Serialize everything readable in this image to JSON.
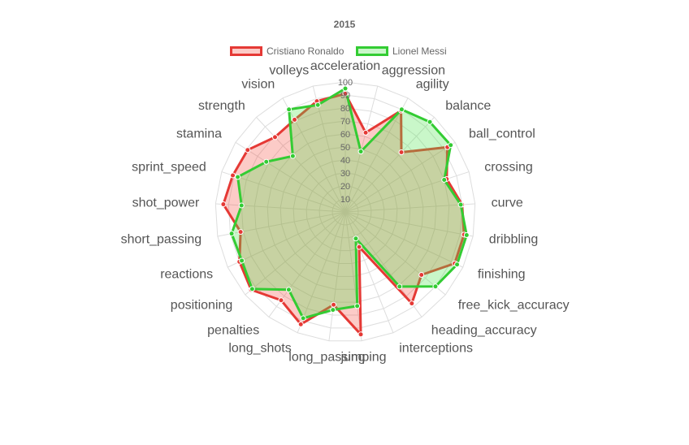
{
  "chart_data": {
    "type": "radar",
    "title": "2015",
    "axes": [
      "acceleration",
      "aggression",
      "agility",
      "balance",
      "ball_control",
      "crossing",
      "curve",
      "dribbling",
      "finishing",
      "free_kick_accuracy",
      "heading_accuracy",
      "interceptions",
      "jumping",
      "long_passing",
      "long_shots",
      "penalties",
      "positioning",
      "reactions",
      "short_passing",
      "shot_power",
      "sprint_speed",
      "stamina",
      "strength",
      "vision",
      "volleys"
    ],
    "r_ticks": [
      10,
      20,
      30,
      40,
      50,
      60,
      70,
      80,
      90,
      100
    ],
    "r_range": [
      0,
      100
    ],
    "grid": true,
    "legend_position": "top",
    "series": [
      {
        "name": "Cristiano Ronaldo",
        "color": "#e53935",
        "fill": "rgba(244,67,54,0.28)",
        "values": [
          91,
          63,
          89,
          63,
          93,
          82,
          90,
          93,
          93,
          76,
          87,
          29,
          95,
          72,
          93,
          84,
          94,
          90,
          82,
          94,
          91,
          89,
          79,
          81,
          88
        ]
      },
      {
        "name": "Lionel Messi",
        "color": "#33cc33",
        "fill": "rgba(76,230,76,0.30)",
        "values": [
          95,
          48,
          90,
          95,
          96,
          80,
          89,
          95,
          95,
          90,
          71,
          22,
          73,
          76,
          88,
          74,
          93,
          88,
          89,
          80,
          87,
          72,
          59,
          90,
          85
        ]
      }
    ]
  }
}
